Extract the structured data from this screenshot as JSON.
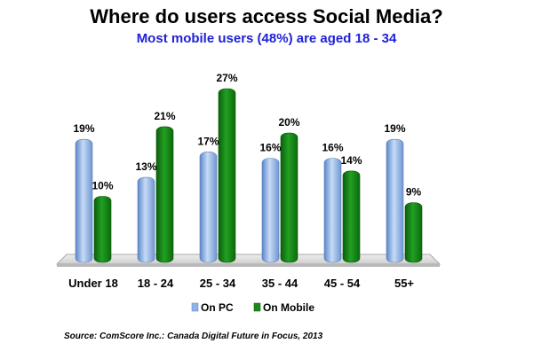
{
  "chart_data": {
    "type": "bar",
    "title": "Where do users access Social Media?",
    "subtitle": "Most mobile users (48%) are aged 18 - 34",
    "categories": [
      "Under 18",
      "18 - 24",
      "25 - 34",
      "35 - 44",
      "45 - 54",
      "55+"
    ],
    "series": [
      {
        "name": "On PC",
        "values": [
          19,
          13,
          17,
          16,
          16,
          19
        ],
        "labels": [
          "19%",
          "13%",
          "17%",
          "16%",
          "16%",
          "19%"
        ],
        "color": "#8fb3e6"
      },
      {
        "name": "On Mobile",
        "values": [
          10,
          21,
          27,
          20,
          14,
          9
        ],
        "labels": [
          "10%",
          "21%",
          "27%",
          "20%",
          "14%",
          "9%"
        ],
        "color": "#1a8a1a"
      }
    ],
    "ylim": [
      0,
      27
    ],
    "legend_position": "bottom",
    "grid": false,
    "source": "Source: ComScore Inc.: Canada Digital Future in Focus, 2013"
  }
}
